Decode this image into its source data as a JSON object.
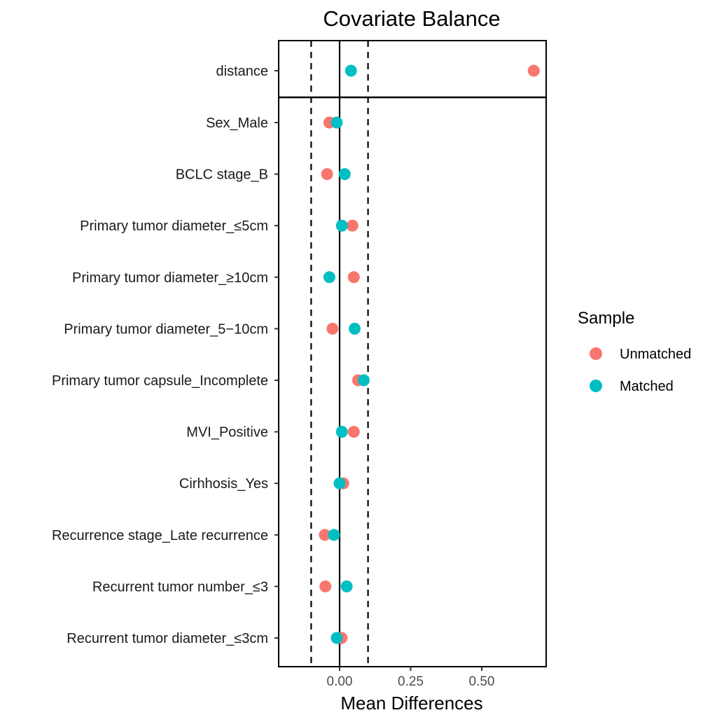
{
  "chart_data": {
    "type": "scatter",
    "title": "Covariate Balance",
    "xlabel": "Mean Differences",
    "ylabel": "",
    "xlim": [
      -0.24,
      0.8
    ],
    "xticks": [
      0.0,
      0.25,
      0.5
    ],
    "xtick_labels": [
      "0.00",
      "0.25",
      "0.50"
    ],
    "reference_lines": {
      "solid": 0,
      "dashed": [
        -0.1,
        0.1
      ]
    },
    "grid": false,
    "legend_position": "right",
    "legend_title": "Sample",
    "categories": [
      "distance",
      "Sex_Male",
      "BCLC stage_B",
      "Primary tumor diameter_≤5cm",
      "Primary tumor diameter_≥10cm",
      "Primary tumor diameter_5−10cm",
      "Primary tumor capsule_Incomplete",
      "MVI_Positive",
      "Cirhhosis_Yes",
      "Recurrence stage_Late recurrence",
      "Recurrent tumor number_≤3",
      "Recurrent tumor diameter_≤3cm"
    ],
    "series": [
      {
        "name": "Unmatched",
        "color": "#F8766D",
        "values": [
          0.683,
          -0.036,
          -0.044,
          0.045,
          0.05,
          -0.025,
          0.065,
          0.05,
          0.013,
          -0.052,
          -0.05,
          0.007
        ]
      },
      {
        "name": "Matched",
        "color": "#00BFC4",
        "values": [
          0.04,
          -0.01,
          0.018,
          0.008,
          -0.036,
          0.053,
          0.085,
          0.008,
          0.0,
          -0.02,
          0.025,
          -0.01
        ]
      }
    ]
  }
}
